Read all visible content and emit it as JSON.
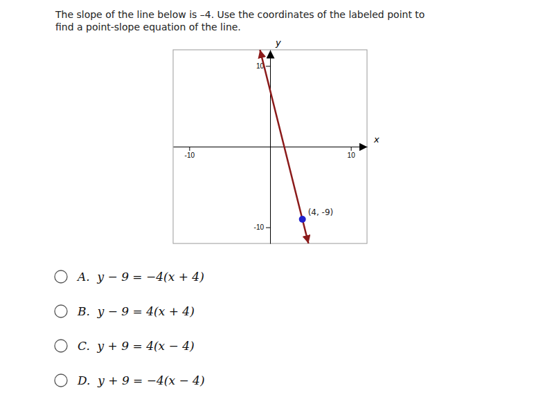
{
  "chart_data": {
    "type": "line",
    "title": "The slope of the line below is –4. Use the coordinates of the labeled point to\nfind a point-slope equation of the line.",
    "x_label": "x",
    "y_label": "y",
    "xlim": [
      -12,
      12
    ],
    "ylim": [
      -12,
      12
    ],
    "xticks": [
      -10,
      10
    ],
    "yticks": [
      10,
      -10
    ],
    "grid": false,
    "series": [
      {
        "type": "line",
        "color": "#8b1a1a",
        "x": [
          -1.25,
          4.75
        ],
        "values": [
          12,
          -12
        ]
      },
      {
        "type": "scatter",
        "marker": "circle",
        "color": "#2222cc",
        "x": [
          4
        ],
        "values": [
          -9
        ],
        "data_labels": true,
        "value_labels": [
          "(4, -9)"
        ]
      }
    ],
    "annotations": [
      "A.  y − 9 = −4(x + 4)",
      "B.  y − 9 = 4(x + 4)",
      "C.  y + 9 = 4(x − 4)",
      "D.  y + 9 = −4(x − 4)"
    ]
  }
}
